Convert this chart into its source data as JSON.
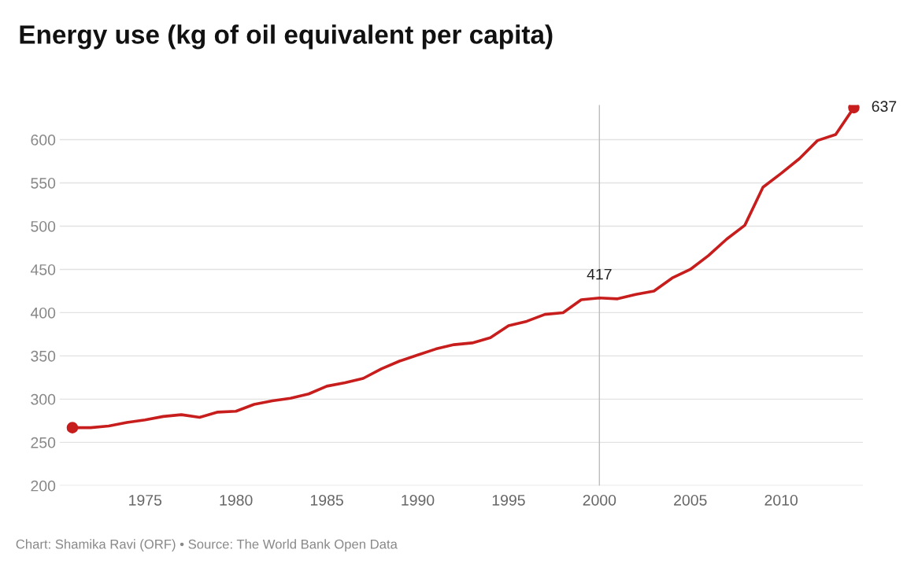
{
  "chart_data": {
    "type": "line",
    "title": "Energy use (kg of oil equivalent per capita)",
    "x": [
      1971,
      1972,
      1973,
      1974,
      1975,
      1976,
      1977,
      1978,
      1979,
      1980,
      1981,
      1982,
      1983,
      1984,
      1985,
      1986,
      1987,
      1988,
      1989,
      1990,
      1991,
      1992,
      1993,
      1994,
      1995,
      1996,
      1997,
      1998,
      1999,
      2000,
      2001,
      2002,
      2003,
      2004,
      2005,
      2006,
      2007,
      2008,
      2009,
      2010,
      2011,
      2012,
      2013,
      2014
    ],
    "series": [
      {
        "color": "#c71e1d",
        "values": [
          267,
          267,
          269,
          273,
          276,
          280,
          282,
          279,
          285,
          286,
          294,
          298,
          301,
          306,
          315,
          319,
          324,
          335,
          344,
          351,
          358,
          363,
          365,
          371,
          385,
          390,
          398,
          400,
          415,
          417,
          416,
          421,
          425,
          440,
          450,
          466,
          485,
          501,
          545,
          561,
          578,
          599,
          606,
          637
        ]
      },
      {
        "type": "scatter",
        "marker": "circle",
        "color": "#c71e1d",
        "x": [
          1971,
          2014
        ],
        "values": [
          267,
          637
        ]
      }
    ],
    "xlim": [
      1970.3,
      2014.5
    ],
    "ylim": [
      200,
      640
    ],
    "xticks": [
      1975,
      1980,
      1985,
      1990,
      1995,
      2000,
      2005,
      2010
    ],
    "yticks": [
      200,
      250,
      300,
      350,
      400,
      450,
      500,
      550,
      600
    ],
    "grid": "y",
    "line_style": "solid",
    "ref_lines": [
      {
        "axis": "x",
        "value": 2000,
        "color": "#bdbdbd"
      }
    ],
    "annotations": [
      {
        "text": "417",
        "x": 2000,
        "y": 417
      },
      {
        "text": "637",
        "x": 2014,
        "y": 637
      },
      "Chart: Shamika Ravi (ORF) • Source: The World Bank Open Data"
    ]
  }
}
